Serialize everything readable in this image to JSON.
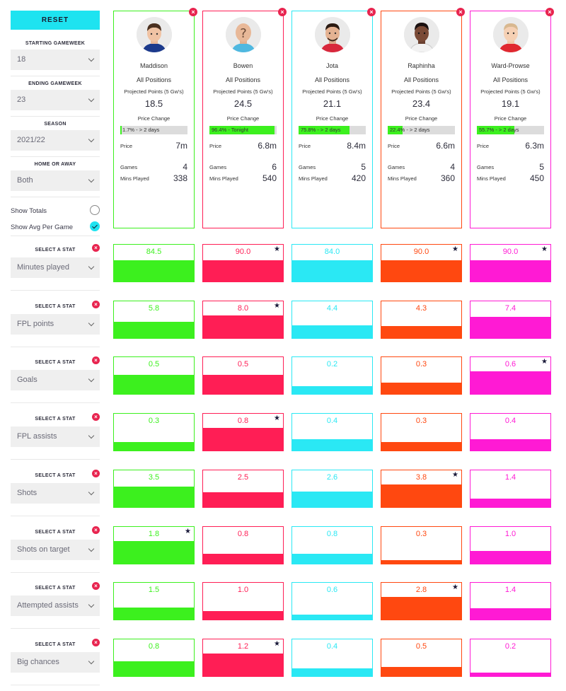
{
  "sidebar": {
    "reset_label": "RESET",
    "starting_gameweek": {
      "label": "STARTING GAMEWEEK",
      "value": "18"
    },
    "ending_gameweek": {
      "label": "ENDING GAMEWEEK",
      "value": "23"
    },
    "season": {
      "label": "SEASON",
      "value": "2021/22"
    },
    "home_away": {
      "label": "HOME OR AWAY",
      "value": "Both"
    },
    "show_totals": {
      "label": "Show Totals",
      "checked": false
    },
    "show_avg": {
      "label": "Show Avg Per Game",
      "checked": true
    }
  },
  "labels": {
    "projected": "Projected Points (5 Gw's)",
    "price_change": "Price Change",
    "price": "Price",
    "games": "Games",
    "mins": "Mins Played",
    "select_stat": "SELECT A STAT"
  },
  "colors": {
    "green": "#3cf01e",
    "red": "#ff1e55",
    "cyan": "#2ae8f4",
    "orange": "#ff4810",
    "magenta": "#ff1ad4",
    "star": "#1a1a3a",
    "close": "#e8244f"
  },
  "players": [
    {
      "name": "Maddison",
      "position": "All Positions",
      "projected": "18.5",
      "price_change_text": "1.7% - > 2 days",
      "price_change_pct": 0.017,
      "price": "7m",
      "games": "4",
      "mins": "338",
      "color": "#3cf01e",
      "avatar": "player-maddison"
    },
    {
      "name": "Bowen",
      "position": "All Positions",
      "projected": "24.5",
      "price_change_text": "96.4% - Tonight",
      "price_change_pct": 0.964,
      "price": "6.8m",
      "games": "6",
      "mins": "540",
      "color": "#ff1e55",
      "avatar": "unknown-player"
    },
    {
      "name": "Jota",
      "position": "All Positions",
      "projected": "21.1",
      "price_change_text": "75.8% - > 2 days",
      "price_change_pct": 0.758,
      "price": "8.4m",
      "games": "5",
      "mins": "420",
      "color": "#2ae8f4",
      "avatar": "player-jota"
    },
    {
      "name": "Raphinha",
      "position": "All Positions",
      "projected": "23.4",
      "price_change_text": "22.4% - > 2 days",
      "price_change_pct": 0.224,
      "price": "6.6m",
      "games": "4",
      "mins": "360",
      "color": "#ff4810",
      "avatar": "player-raphinha"
    },
    {
      "name": "Ward-Prowse",
      "position": "All Positions",
      "projected": "19.1",
      "price_change_text": "55.7% - > 2 days",
      "price_change_pct": 0.557,
      "price": "6.3m",
      "games": "5",
      "mins": "450",
      "color": "#ff1ad4",
      "avatar": "player-ward-prowse"
    }
  ],
  "stats": [
    {
      "name": "Minutes played",
      "values": [
        "84.5",
        "90.0",
        "84.0",
        "90.0",
        "90.0"
      ],
      "fills": [
        0.94,
        0.94,
        0.94,
        0.94,
        0.94
      ],
      "best": [
        false,
        true,
        false,
        true,
        true
      ]
    },
    {
      "name": "FPL points",
      "values": [
        "5.8",
        "8.0",
        "4.4",
        "4.3",
        "7.4"
      ],
      "fills": [
        0.73,
        1.0,
        0.55,
        0.54,
        0.93
      ],
      "best": [
        false,
        true,
        false,
        false,
        false
      ]
    },
    {
      "name": "Goals",
      "values": [
        "0.5",
        "0.5",
        "0.2",
        "0.3",
        "0.6"
      ],
      "fills": [
        0.83,
        0.83,
        0.33,
        0.5,
        1.0
      ],
      "best": [
        false,
        false,
        false,
        false,
        true
      ]
    },
    {
      "name": "FPL assists",
      "values": [
        "0.3",
        "0.8",
        "0.4",
        "0.3",
        "0.4"
      ],
      "fills": [
        0.38,
        1.0,
        0.5,
        0.38,
        0.5
      ],
      "best": [
        false,
        true,
        false,
        false,
        false
      ]
    },
    {
      "name": "Shots",
      "values": [
        "3.5",
        "2.5",
        "2.6",
        "3.8",
        "1.4"
      ],
      "fills": [
        0.92,
        0.66,
        0.68,
        1.0,
        0.37
      ],
      "best": [
        false,
        false,
        false,
        true,
        false
      ]
    },
    {
      "name": "Shots on target",
      "values": [
        "1.8",
        "0.8",
        "0.8",
        "0.3",
        "1.0"
      ],
      "fills": [
        1.0,
        0.44,
        0.44,
        0.17,
        0.56
      ],
      "best": [
        true,
        false,
        false,
        false,
        false
      ]
    },
    {
      "name": "Attempted assists",
      "values": [
        "1.5",
        "1.0",
        "0.6",
        "2.8",
        "1.4"
      ],
      "fills": [
        0.54,
        0.36,
        0.21,
        1.0,
        0.5
      ],
      "best": [
        false,
        false,
        false,
        true,
        false
      ]
    },
    {
      "name": "Big chances",
      "values": [
        "0.8",
        "1.2",
        "0.4",
        "0.5",
        "0.2"
      ],
      "fills": [
        0.67,
        1.0,
        0.33,
        0.42,
        0.17
      ],
      "best": [
        false,
        true,
        false,
        false,
        false
      ]
    }
  ]
}
